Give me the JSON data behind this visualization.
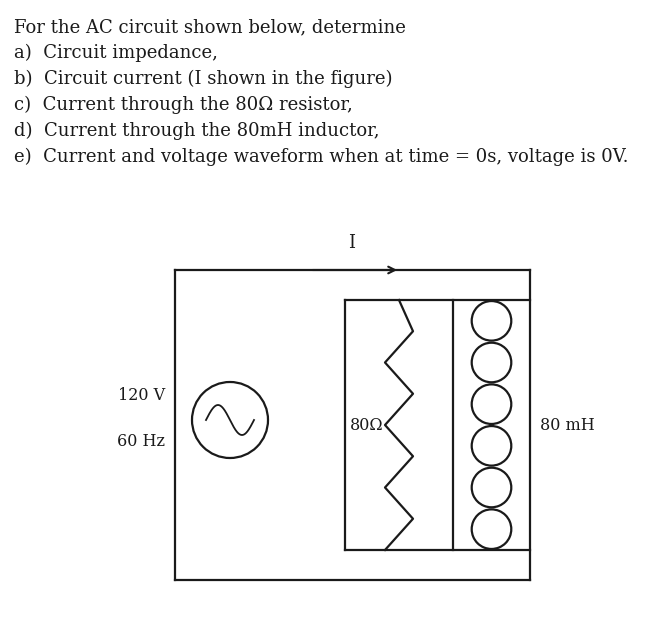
{
  "title_line": "For the AC circuit shown below, determine",
  "items": [
    "a)  Circuit impedance,",
    "b)  Circuit current (I shown in the figure)",
    "c)  Current through the 80Ω resistor,",
    "d)  Current through the 80mH inductor,",
    "e)  Current and voltage waveform when at time = 0s, voltage is 0V."
  ],
  "voltage_label": "120 V",
  "freq_label": "60 Hz",
  "resistor_label": "80Ω",
  "inductor_label": "80 mH",
  "current_label": "I",
  "bg_color": "#ffffff",
  "line_color": "#1a1a1a",
  "text_color": "#1a1a1a",
  "font_size_title": 13,
  "font_size_items": 13,
  "font_size_labels": 11.5
}
